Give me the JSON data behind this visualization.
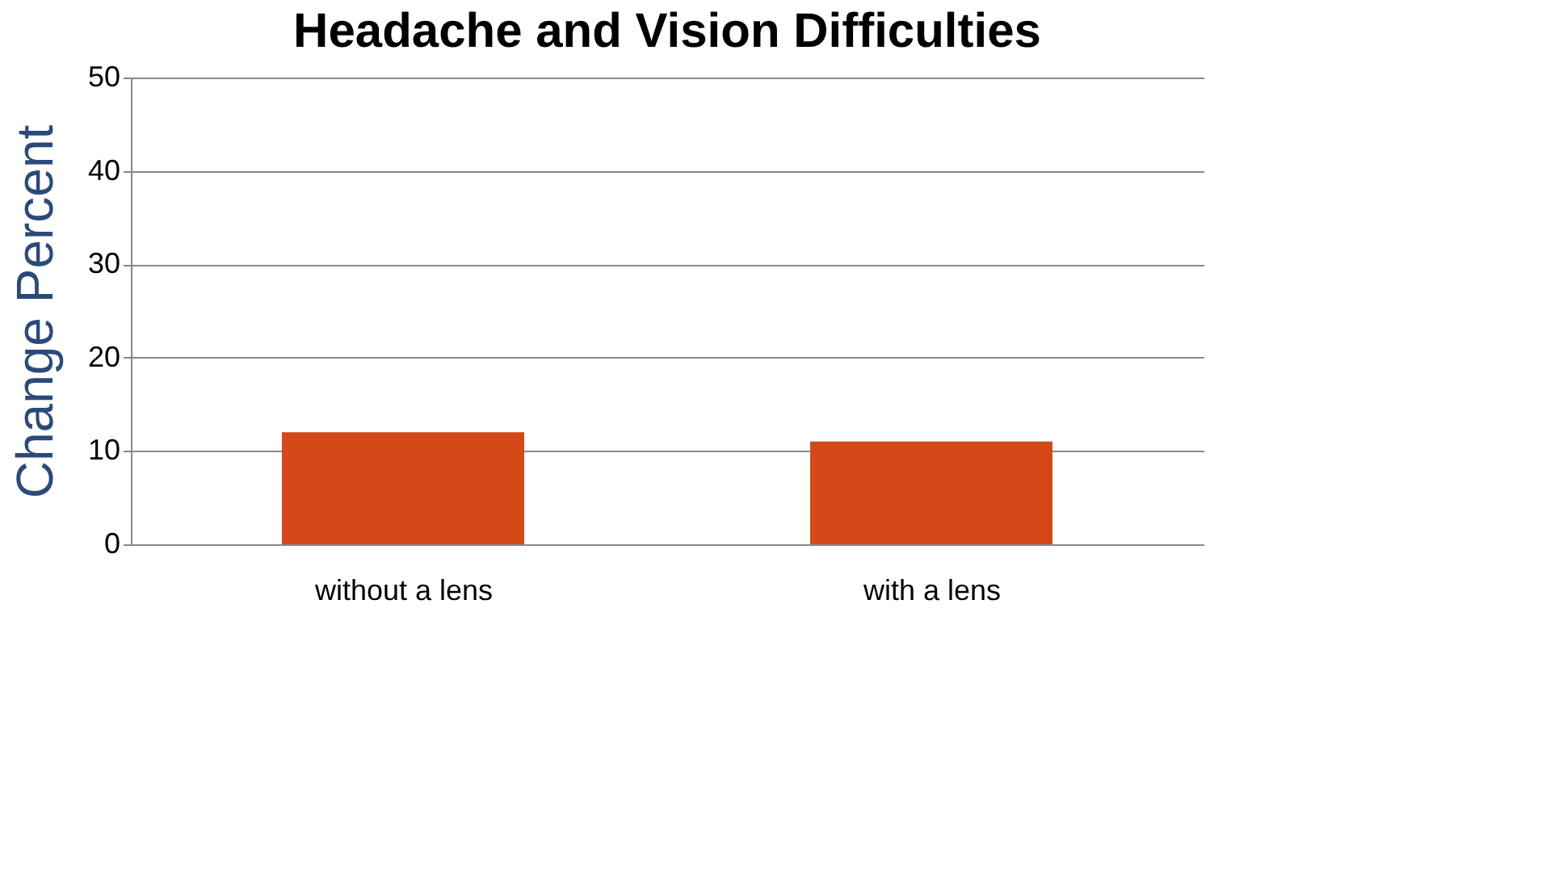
{
  "chart_data": {
    "type": "bar",
    "title": "Headache and Vision Difficulties",
    "ylabel": "Change Percent",
    "categories": [
      "without a lens",
      "with a lens"
    ],
    "values": [
      12,
      11
    ],
    "color": "#d34a18",
    "ylim": [
      0,
      50
    ],
    "yticks": [
      0,
      10,
      20,
      30,
      40,
      50
    ],
    "grid": "y"
  }
}
